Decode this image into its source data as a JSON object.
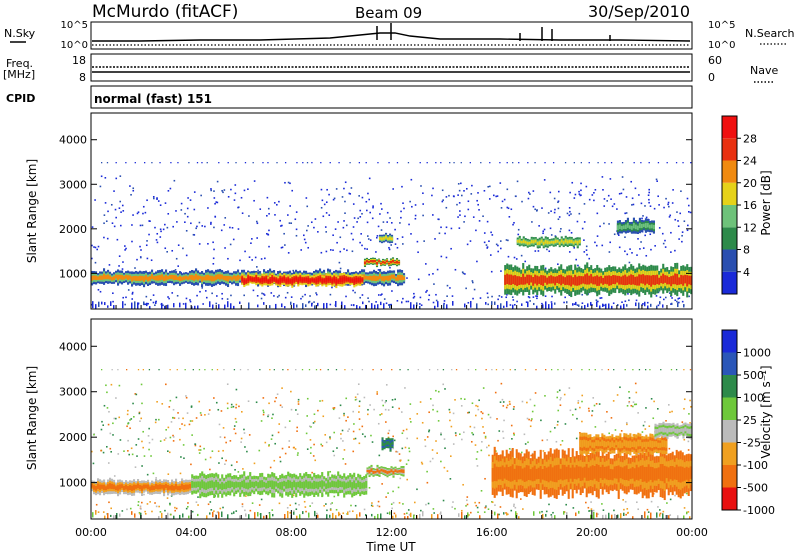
{
  "header": {
    "station": "McMurdo (fitACF)",
    "beam": "Beam 09",
    "date": "30/Sep/2010"
  },
  "summary_panels": {
    "nsky_label": "N.Sky",
    "nsky_ticks": [
      "10^5",
      "10^0"
    ],
    "nsearch_label": "N.Search",
    "nsearch_ticks": [
      "10^5",
      "10^0"
    ],
    "freq_label": "Freq.",
    "freq_unit": "[MHz]",
    "freq_ticks": [
      "18",
      "8"
    ],
    "nave_label": "Nave",
    "nave_ticks": [
      "60",
      "0"
    ],
    "cpid_label": "CPID",
    "cpid_value": "normal (fast) 151"
  },
  "chart_data": [
    {
      "type": "heatmap",
      "panel": "power",
      "x": [
        "00:00",
        "24:00"
      ],
      "xlabel": "",
      "ylabel": "Slant Range [km]",
      "yticks": [
        "1000",
        "2000",
        "3000",
        "4000"
      ],
      "ylim": [
        200,
        4600
      ],
      "colorbar_label": "Power [dB]",
      "colorbar_ticks": [
        "4",
        "8",
        "12",
        "16",
        "20",
        "24",
        "28"
      ],
      "colors": [
        "#1a2ad8",
        "#2a4fb0",
        "#2d8a4a",
        "#6ec27a",
        "#e6d21a",
        "#f08a10",
        "#e83010",
        "#f01010"
      ],
      "regions": [
        {
          "t_start": 0.0,
          "t_end": 12.5,
          "range_center": 900,
          "range_width": 300,
          "power": 24
        },
        {
          "t_start": 6.0,
          "t_end": 10.8,
          "range_center": 850,
          "range_width": 250,
          "power": 28
        },
        {
          "t_start": 16.5,
          "t_end": 24.0,
          "range_center": 850,
          "range_width": 600,
          "power": 20
        }
      ]
    },
    {
      "type": "heatmap",
      "panel": "velocity",
      "x": [
        "00:00",
        "04:00",
        "08:00",
        "12:00",
        "16:00",
        "20:00",
        "00:00"
      ],
      "xlabel": "Time UT",
      "ylabel": "Slant Range [km]",
      "yticks": [
        "1000",
        "2000",
        "3000",
        "4000"
      ],
      "ylim": [
        200,
        4600
      ],
      "colorbar_label": "Velocity [m s⁻¹]",
      "colorbar_ticks": [
        "1000",
        "500",
        "100",
        "25",
        "-25",
        "-100",
        "-500",
        "-1000"
      ],
      "colors": [
        "#1a2ad8",
        "#2a56b8",
        "#2d8a4a",
        "#6ec83a",
        "#bbbbbb",
        "#f0a020",
        "#f07010",
        "#e81010"
      ],
      "regions": [
        {
          "t_start": 0.0,
          "t_end": 4.0,
          "range_center": 900,
          "range_width": 300,
          "velocity": -25
        },
        {
          "t_start": 4.0,
          "t_end": 11.0,
          "range_center": 950,
          "range_width": 450,
          "velocity": 100
        },
        {
          "t_start": 16.0,
          "t_end": 24.0,
          "range_center": 1200,
          "range_width": 900,
          "velocity": -100
        }
      ]
    }
  ]
}
